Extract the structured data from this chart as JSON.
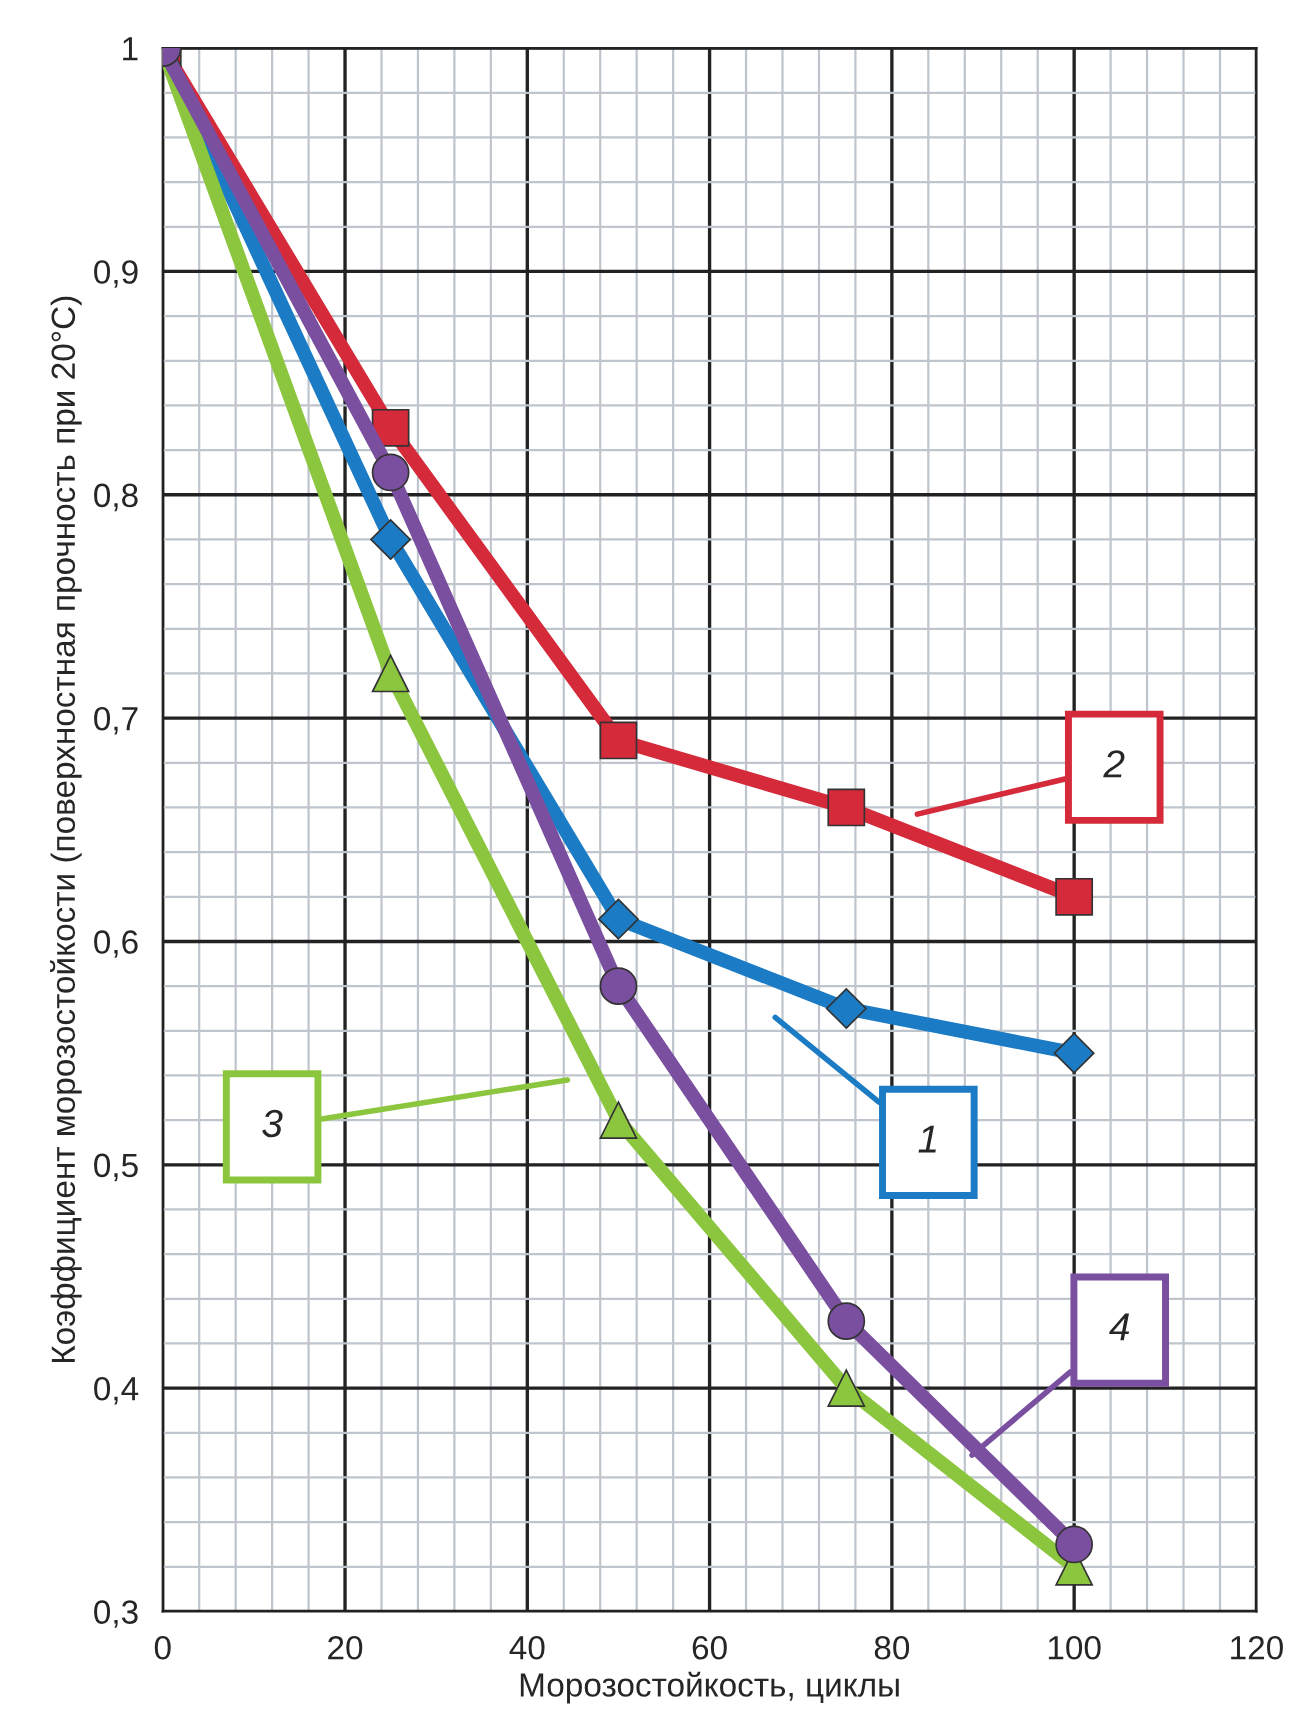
{
  "chart_data": {
    "type": "line",
    "xlabel": "Морозостойкость, циклы",
    "ylabel": "Коэффициент морозостойкости (поверхностная прочность при 20°С)",
    "x": [
      0,
      25,
      50,
      75,
      100
    ],
    "series": [
      {
        "name": "1",
        "color": "#1b7bc4",
        "marker": "diamond",
        "values": [
          1,
          0.78,
          0.61,
          0.57,
          0.55
        ]
      },
      {
        "name": "2",
        "color": "#d42a3a",
        "marker": "square",
        "values": [
          1,
          0.83,
          0.69,
          0.66,
          0.62
        ]
      },
      {
        "name": "3",
        "color": "#8cc63f",
        "marker": "triangle",
        "values": [
          1,
          0.72,
          0.52,
          0.4,
          0.32
        ]
      },
      {
        "name": "4",
        "color": "#7b4fa0",
        "marker": "circle",
        "values": [
          1,
          0.81,
          0.58,
          0.43,
          0.33
        ]
      }
    ],
    "xlim": [
      0,
      120
    ],
    "xticks": [
      0,
      20,
      40,
      60,
      80,
      100,
      120
    ],
    "ylim": [
      0.3,
      1
    ],
    "yticks": [
      {
        "value": 0.3,
        "label": "0,3"
      },
      {
        "value": 0.4,
        "label": "0,4"
      },
      {
        "value": 0.5,
        "label": "0,5"
      },
      {
        "value": 0.6,
        "label": "0,6"
      },
      {
        "value": 0.7,
        "label": "0,7"
      },
      {
        "value": 0.8,
        "label": "0,8"
      },
      {
        "value": 0.9,
        "label": "0,9"
      },
      {
        "value": 1,
        "label": "1"
      }
    ],
    "grid": true,
    "line_style": "solid"
  }
}
